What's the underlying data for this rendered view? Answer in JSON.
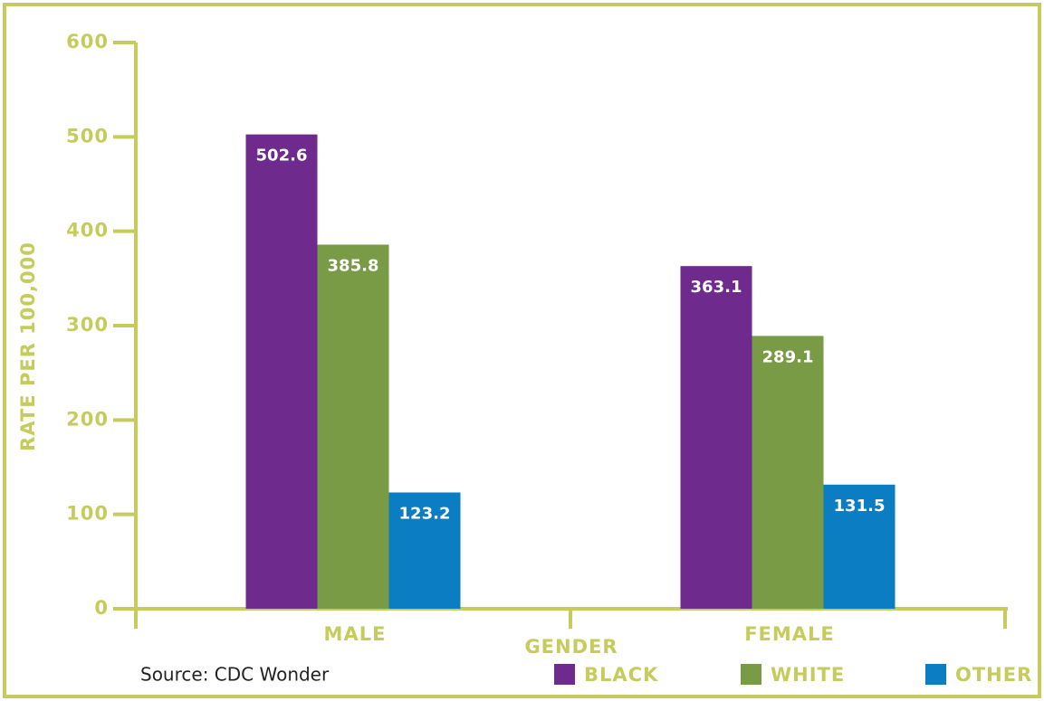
{
  "chart_data": {
    "type": "bar",
    "xlabel": "GENDER",
    "ylabel": "RATE PER 100,000",
    "source": "Source: CDC Wonder",
    "categories": [
      "MALE",
      "FEMALE"
    ],
    "series": [
      {
        "name": "BLACK",
        "color": "#6e2a8d",
        "values": [
          502.6,
          363.1
        ]
      },
      {
        "name": "WHITE",
        "color": "#7a9b46",
        "values": [
          385.8,
          289.1
        ]
      },
      {
        "name": "OTHER",
        "color": "#0b7dc3",
        "values": [
          123.2,
          131.5
        ]
      }
    ],
    "ylim": [
      0,
      600
    ],
    "yticks": [
      0,
      100,
      200,
      300,
      400,
      500,
      600
    ],
    "axis_color": "#c6cc5c",
    "legend": "bottom right"
  }
}
